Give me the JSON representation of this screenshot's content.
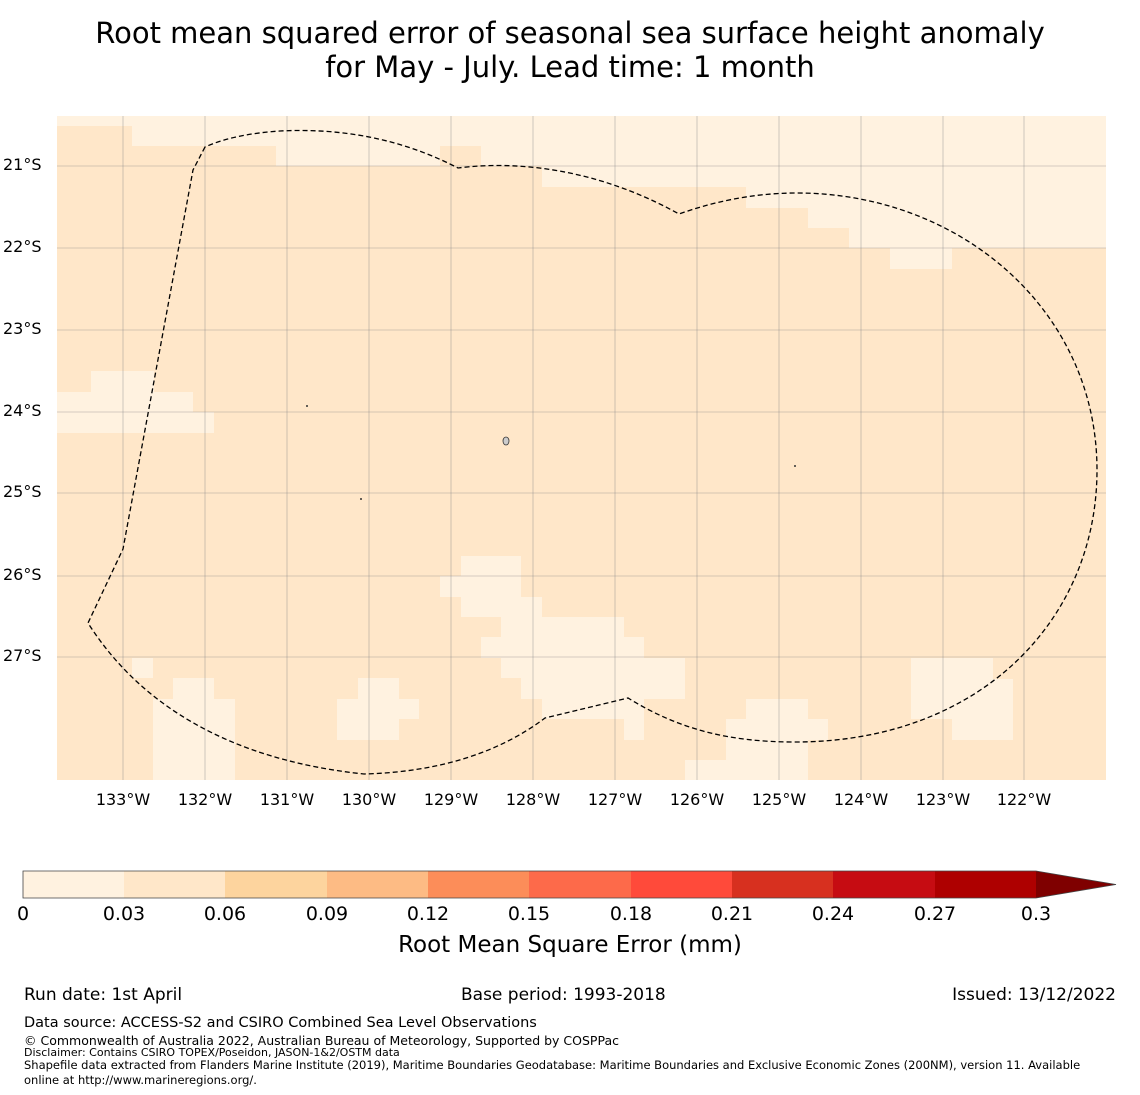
{
  "title": {
    "line1": "Root mean squared error of seasonal sea surface height anomaly",
    "line2": "for May - July. Lead time: 1 month"
  },
  "map": {
    "lat_labels": [
      "21°S",
      "22°S",
      "23°S",
      "24°S",
      "25°S",
      "26°S",
      "27°S"
    ],
    "lon_labels": [
      "133°W",
      "132°W",
      "131°W",
      "130°W",
      "129°W",
      "128°W",
      "127°W",
      "126°W",
      "125°W",
      "124°W",
      "123°W",
      "122°W"
    ],
    "colors": {
      "bin_0_003": "#fff2e0",
      "bin_003_006": "#ffe7c9",
      "grid": "#888888",
      "eez_line": "#000000"
    }
  },
  "colorbar": {
    "ticks": [
      "0",
      "0.03",
      "0.06",
      "0.09",
      "0.12",
      "0.15",
      "0.18",
      "0.21",
      "0.24",
      "0.27",
      "0.3"
    ],
    "colors": [
      "#fff2e0",
      "#ffe7c9",
      "#fdd49e",
      "#fdbb84",
      "#fc8d59",
      "#fd6a4a",
      "#ff4a3a",
      "#d7301f",
      "#c60c12",
      "#ae0000"
    ],
    "extend_color": "#7f0000",
    "label": "Root Mean Square Error (mm)"
  },
  "footer": {
    "run_date": "Run date: 1st April",
    "base_period": "Base period: 1993-2018",
    "issued": "Issued: 13/12/2022",
    "data_source": "Data source: ACCESS-S2 and CSIRO Combined Sea Level Observations",
    "copyright": "© Commonwealth of Australia 2022, Australian Bureau of Meteorology, Supported by COSPPac",
    "disclaimer": "Disclaimer: Contains CSIRO TOPEX/Poseidon, JASON-1&2/OSTM data",
    "shapefile_line1": "Shapefile data extracted from Flanders Marine Institute (2019), Maritime Boundaries Geodatabase: Maritime Boundaries and Exclusive Economic Zones (200NM), version 11. Available",
    "shapefile_line2": "online at http://www.marineregions.org/."
  }
}
